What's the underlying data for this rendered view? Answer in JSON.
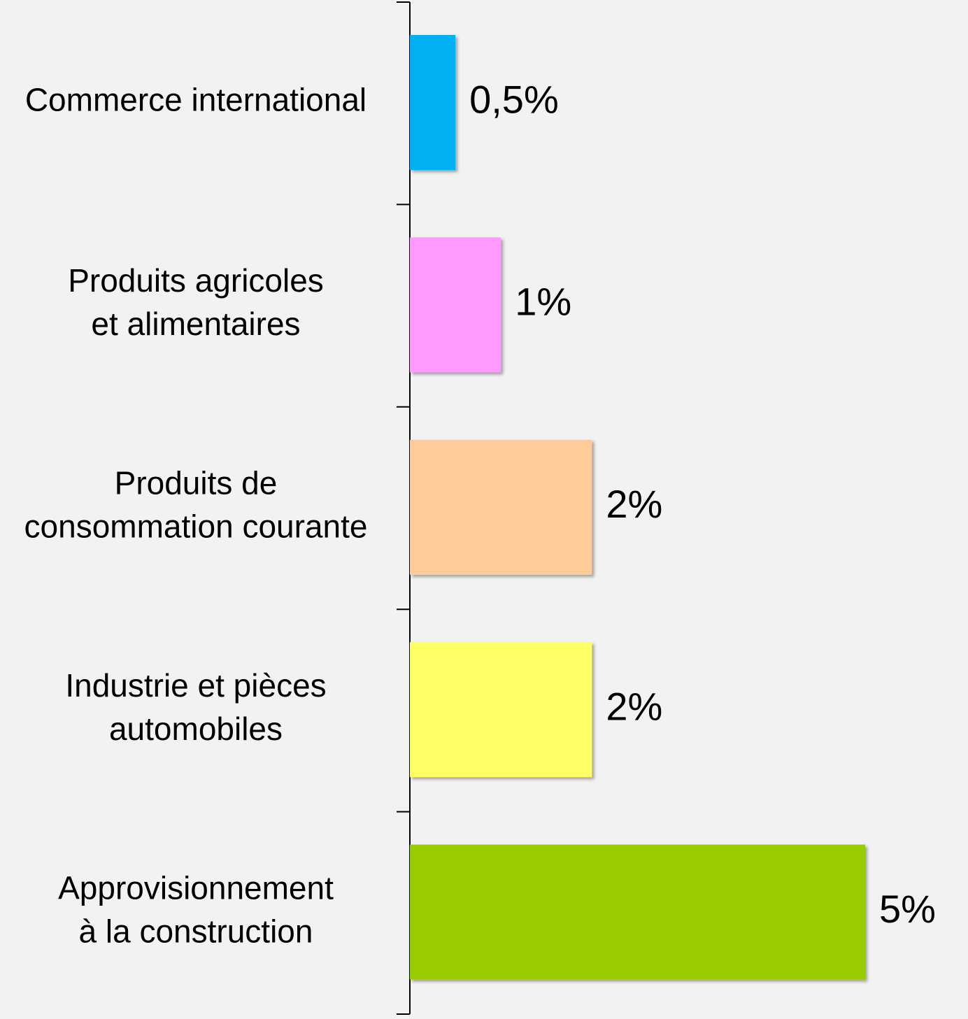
{
  "chart_data": {
    "type": "barh",
    "categories": [
      [
        "Commerce international"
      ],
      [
        "Produits agricoles",
        "et alimentaires"
      ],
      [
        "Produits de",
        "consommation courante"
      ],
      [
        "Industrie et pièces",
        "automobiles"
      ],
      [
        "Approvisionnement",
        "à la construction"
      ]
    ],
    "values": [
      0.5,
      1,
      2,
      2,
      5
    ],
    "value_labels": [
      "0,5%",
      "1%",
      "2%",
      "2%",
      "5%"
    ],
    "colors": [
      "#00b0f0",
      "#ff99ff",
      "#ffcc99",
      "#ffff66",
      "#99cc00"
    ]
  }
}
